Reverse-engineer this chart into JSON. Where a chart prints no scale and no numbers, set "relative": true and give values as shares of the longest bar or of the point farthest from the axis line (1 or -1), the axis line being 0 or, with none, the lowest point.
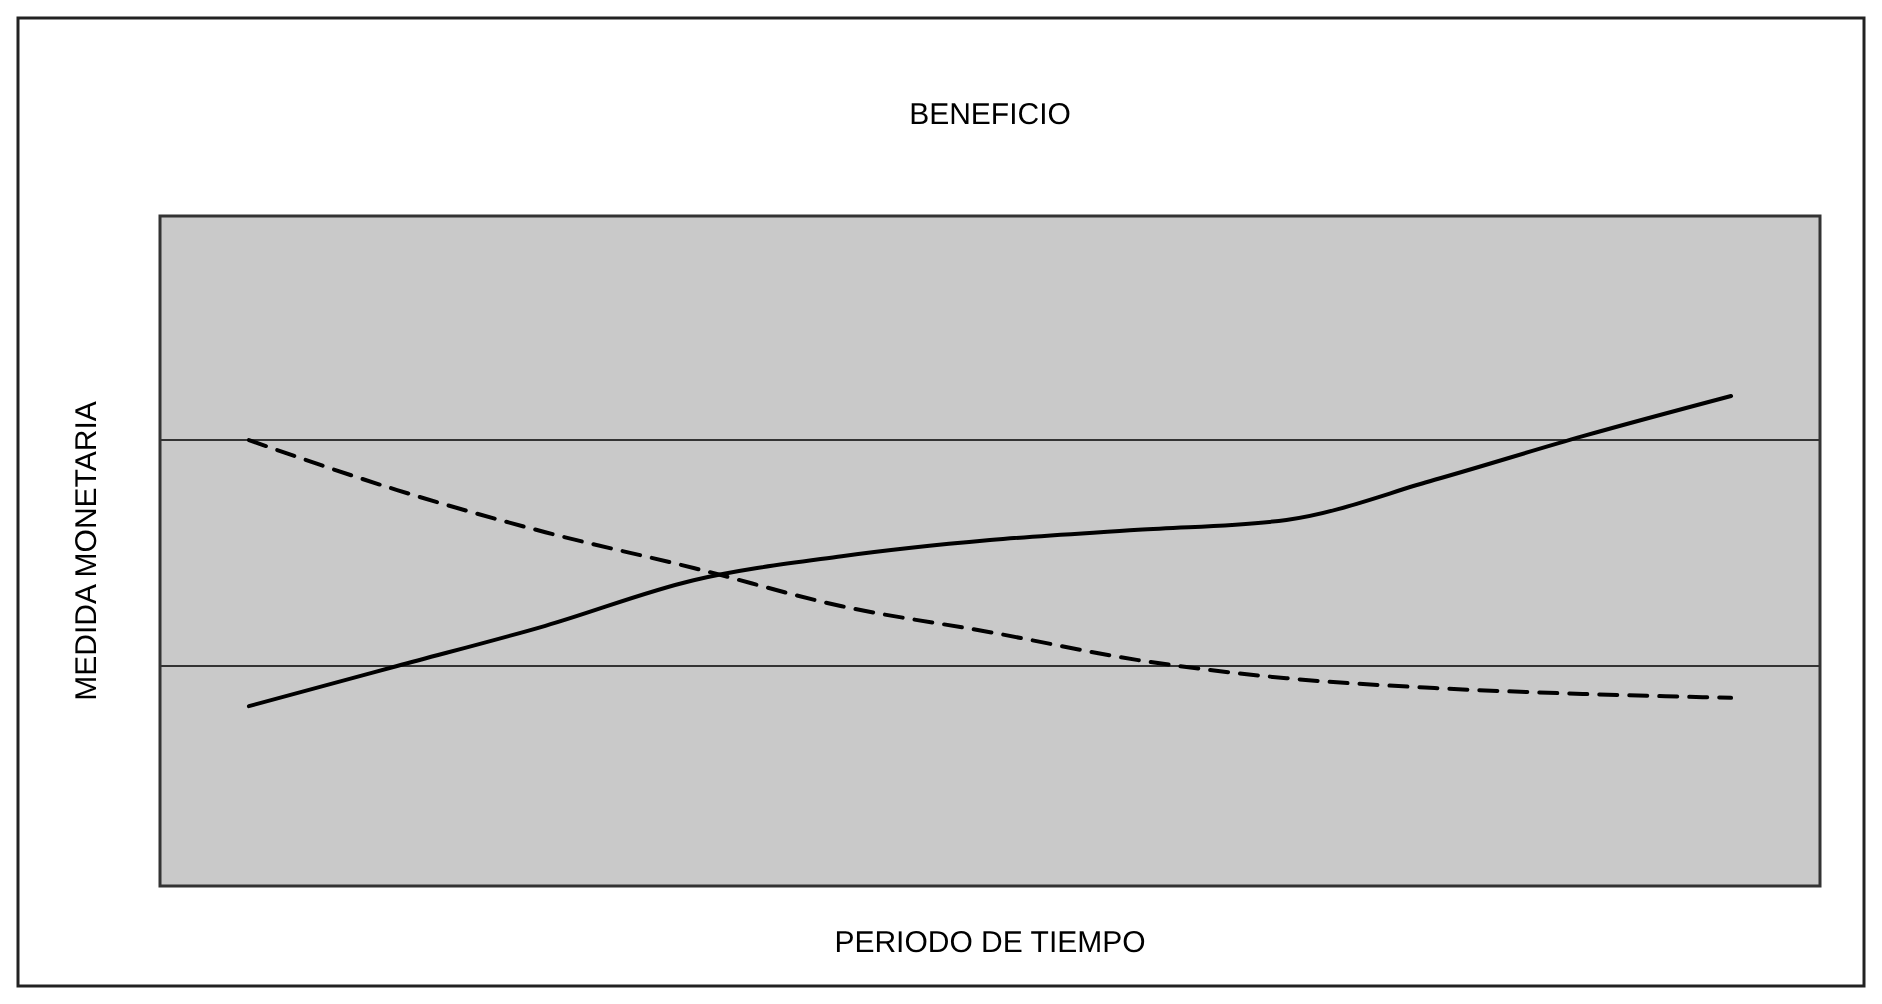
{
  "chart_data": {
    "type": "line",
    "title": "BENEFICIO",
    "xlabel": "PERIODO DE TIEMPO",
    "ylabel": "MEDIDA MONETARIA",
    "relative": true,
    "categories": [
      null,
      null,
      null,
      null,
      null,
      null,
      null,
      null,
      null,
      null,
      null
    ],
    "series": [
      {
        "color": "#000000",
        "line_style": "solid",
        "values": [
          0.367,
          0.449,
          0.531,
          0.624,
          0.673,
          0.706,
          0.727,
          0.747,
          0.829,
          0.918,
          1
        ]
      },
      {
        "color": "#000000",
        "line_style": "dashed",
        "values": [
          0.91,
          0.808,
          0.722,
          0.649,
          0.571,
          0.518,
          0.461,
          0.424,
          0.404,
          0.392,
          0.384
        ]
      }
    ],
    "ref_lines": [
      {
        "axis": "y",
        "value": 0.91,
        "color": "#333333"
      },
      {
        "axis": "y",
        "value": 0.449,
        "color": "#333333"
      }
    ],
    "legend": false
  }
}
